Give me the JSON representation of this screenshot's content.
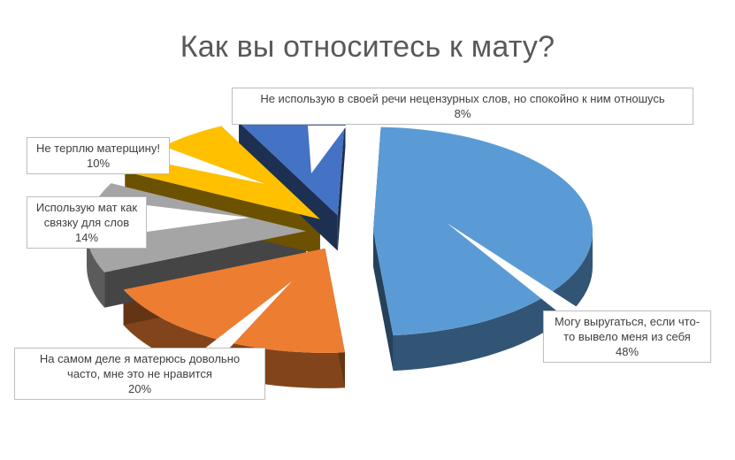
{
  "chart_data": {
    "type": "pie",
    "title": "Как вы относитесь к мату?",
    "slices": [
      {
        "label": "Могу выругаться, если что-то вывело меня из себя",
        "value": 48,
        "value_label": "48%",
        "color": "#5B9BD5"
      },
      {
        "label": "На самом деле я матерюсь довольно часто, мне это не нравится",
        "value": 20,
        "value_label": "20%",
        "color": "#ED7D31"
      },
      {
        "label": "Использую мат как связку для слов",
        "value": 14,
        "value_label": "14%",
        "color": "#A5A5A5"
      },
      {
        "label": "Не терплю матерщину!",
        "value": 10,
        "value_label": "10%",
        "color": "#FFC000"
      },
      {
        "label": "Не использую в своей речи нецензурных слов, но спокойно к ним отношусь",
        "value": 8,
        "value_label": "8%",
        "color": "#4472C4"
      }
    ],
    "style": "3d-exploded"
  },
  "callouts": {
    "c48": {
      "line1": "Могу выругаться, если что-",
      "line2": "то вывело меня из себя",
      "pct": "48%"
    },
    "c20": {
      "line1": "На самом деле я матерюсь довольно",
      "line2": "часто, мне это не нравится",
      "pct": "20%"
    },
    "c14": {
      "line1": "Использую мат как",
      "line2": "связку для слов",
      "pct": "14%"
    },
    "c10": {
      "line1": "Не терплю матерщину!",
      "pct": "10%"
    },
    "c8": {
      "line1": "Не использую в своей речи нецензурных слов, но спокойно к ним отношусь",
      "pct": "8%"
    }
  }
}
